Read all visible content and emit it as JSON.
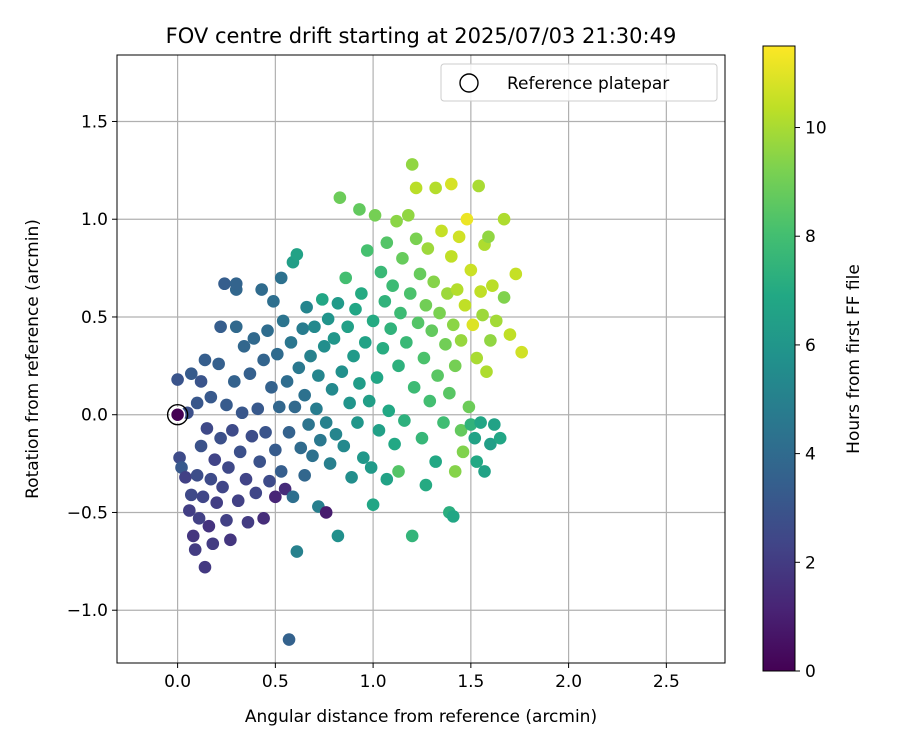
{
  "chart_data": {
    "type": "scatter",
    "title": "FOV centre drift starting at 2025/07/03 21:30:49",
    "xlabel": "Angular distance from reference (arcmin)",
    "ylabel": "Rotation from reference (arcmin)",
    "xlim": [
      -0.31,
      2.8
    ],
    "ylim": [
      -1.27,
      1.84
    ],
    "xticks": [
      0.0,
      0.5,
      1.0,
      1.5,
      2.0,
      2.5
    ],
    "xtick_labels": [
      "0.0",
      "0.5",
      "1.0",
      "1.5",
      "2.0",
      "2.5"
    ],
    "yticks": [
      -1.0,
      -0.5,
      0.0,
      0.5,
      1.0,
      1.5
    ],
    "ytick_labels": [
      "−1.0",
      "−0.5",
      "0.0",
      "0.5",
      "1.0",
      "1.5"
    ],
    "grid": true,
    "legend": {
      "position": "upper right",
      "entries": [
        "Reference platepar"
      ]
    },
    "colorbar": {
      "label": "Hours from first FF file",
      "colormap": "viridis",
      "range": [
        0,
        11.5
      ],
      "ticks": [
        0,
        2,
        4,
        6,
        8,
        10
      ],
      "tick_labels": [
        "0",
        "2",
        "4",
        "6",
        "8",
        "10"
      ]
    },
    "reference_point": {
      "x": 0.0,
      "y": 0.0,
      "label": "Reference platepar"
    },
    "points": [
      [
        0.0,
        0.18,
        3.0
      ],
      [
        0.01,
        -0.22,
        2.6
      ],
      [
        0.02,
        -0.27,
        3.2
      ],
      [
        0.04,
        -0.32,
        2.2
      ],
      [
        0.05,
        0.01,
        2.8
      ],
      [
        0.06,
        -0.49,
        2.1
      ],
      [
        0.07,
        -0.41,
        2.5
      ],
      [
        0.07,
        0.21,
        3.3
      ],
      [
        0.08,
        -0.62,
        1.8
      ],
      [
        0.09,
        -0.69,
        2.0
      ],
      [
        0.1,
        -0.31,
        2.7
      ],
      [
        0.1,
        0.06,
        3.1
      ],
      [
        0.11,
        -0.53,
        2.2
      ],
      [
        0.12,
        -0.16,
        2.9
      ],
      [
        0.12,
        0.17,
        3.0
      ],
      [
        0.13,
        -0.42,
        2.4
      ],
      [
        0.14,
        0.28,
        3.4
      ],
      [
        0.14,
        -0.78,
        1.9
      ],
      [
        0.15,
        -0.07,
        2.5
      ],
      [
        0.16,
        -0.57,
        1.7
      ],
      [
        0.17,
        -0.33,
        2.6
      ],
      [
        0.17,
        0.09,
        3.2
      ],
      [
        0.18,
        -0.66,
        2.0
      ],
      [
        0.19,
        -0.23,
        2.3
      ],
      [
        0.2,
        -0.45,
        2.1
      ],
      [
        0.21,
        0.26,
        3.5
      ],
      [
        0.22,
        -0.12,
        2.8
      ],
      [
        0.22,
        0.45,
        3.4
      ],
      [
        0.23,
        -0.37,
        2.4
      ],
      [
        0.24,
        0.67,
        3.4
      ],
      [
        0.25,
        -0.54,
        2.2
      ],
      [
        0.25,
        0.05,
        3.3
      ],
      [
        0.26,
        -0.27,
        2.5
      ],
      [
        0.27,
        -0.64,
        1.8
      ],
      [
        0.28,
        -0.08,
        2.6
      ],
      [
        0.29,
        0.17,
        3.6
      ],
      [
        0.3,
        0.64,
        3.8
      ],
      [
        0.3,
        0.67,
        3.7
      ],
      [
        0.3,
        0.45,
        3.9
      ],
      [
        0.31,
        -0.44,
        2.2
      ],
      [
        0.32,
        -0.19,
        2.8
      ],
      [
        0.33,
        0.01,
        3.1
      ],
      [
        0.34,
        0.35,
        3.8
      ],
      [
        0.35,
        -0.33,
        2.3
      ],
      [
        0.36,
        -0.55,
        2.0
      ],
      [
        0.37,
        0.21,
        3.5
      ],
      [
        0.38,
        -0.11,
        2.7
      ],
      [
        0.39,
        0.39,
        3.9
      ],
      [
        0.4,
        -0.4,
        2.4
      ],
      [
        0.41,
        0.03,
        3.2
      ],
      [
        0.42,
        -0.24,
        2.9
      ],
      [
        0.43,
        0.64,
        4.0
      ],
      [
        0.44,
        0.28,
        3.7
      ],
      [
        0.44,
        -0.53,
        1.5
      ],
      [
        0.45,
        -0.09,
        3.0
      ],
      [
        0.46,
        0.43,
        4.1
      ],
      [
        0.47,
        -0.34,
        2.6
      ],
      [
        0.48,
        0.14,
        3.6
      ],
      [
        0.49,
        0.58,
        4.2
      ],
      [
        0.5,
        -0.18,
        3.3
      ],
      [
        0.5,
        -0.42,
        1.2
      ],
      [
        0.51,
        0.31,
        4.0
      ],
      [
        0.52,
        0.04,
        3.8
      ],
      [
        0.53,
        -0.29,
        3.4
      ],
      [
        0.53,
        0.7,
        4.3
      ],
      [
        0.54,
        0.48,
        4.4
      ],
      [
        0.55,
        -0.38,
        1.4
      ],
      [
        0.56,
        0.17,
        4.1
      ],
      [
        0.57,
        -0.09,
        3.6
      ],
      [
        0.57,
        -1.15,
        3.6
      ],
      [
        0.58,
        0.37,
        4.5
      ],
      [
        0.59,
        0.78,
        6.4
      ],
      [
        0.59,
        -0.42,
        4.2
      ],
      [
        0.6,
        0.04,
        3.9
      ],
      [
        0.61,
        0.82,
        6.6
      ],
      [
        0.61,
        -0.7,
        5.0
      ],
      [
        0.62,
        0.24,
        4.6
      ],
      [
        0.63,
        -0.17,
        4.0
      ],
      [
        0.64,
        0.44,
        4.8
      ],
      [
        0.65,
        0.1,
        4.3
      ],
      [
        0.65,
        -0.31,
        3.8
      ],
      [
        0.66,
        0.55,
        5.2
      ],
      [
        0.67,
        -0.05,
        4.4
      ],
      [
        0.68,
        0.3,
        5.0
      ],
      [
        0.69,
        -0.21,
        4.3
      ],
      [
        0.7,
        0.45,
        5.4
      ],
      [
        0.71,
        0.03,
        4.8
      ],
      [
        0.72,
        -0.47,
        4.9
      ],
      [
        0.72,
        0.2,
        5.2
      ],
      [
        0.73,
        -0.13,
        4.6
      ],
      [
        0.74,
        0.59,
        6.8
      ],
      [
        0.75,
        0.35,
        5.6
      ],
      [
        0.76,
        -0.5,
        0.9
      ],
      [
        0.76,
        -0.04,
        5.0
      ],
      [
        0.77,
        0.49,
        5.9
      ],
      [
        0.78,
        -0.25,
        4.9
      ],
      [
        0.79,
        0.13,
        5.4
      ],
      [
        0.8,
        0.39,
        6.0
      ],
      [
        0.81,
        -0.1,
        5.2
      ],
      [
        0.82,
        -0.62,
        5.7
      ],
      [
        0.82,
        0.57,
        6.2
      ],
      [
        0.83,
        1.11,
        8.9
      ],
      [
        0.84,
        0.22,
        5.7
      ],
      [
        0.85,
        -0.16,
        5.4
      ],
      [
        0.86,
        0.7,
        8.0
      ],
      [
        0.87,
        0.45,
        6.5
      ],
      [
        0.88,
        0.06,
        5.9
      ],
      [
        0.89,
        -0.32,
        5.6
      ],
      [
        0.9,
        0.3,
        6.2
      ],
      [
        0.91,
        0.54,
        6.8
      ],
      [
        0.92,
        -0.04,
        6.0
      ],
      [
        0.93,
        0.16,
        6.3
      ],
      [
        0.93,
        1.05,
        8.7
      ],
      [
        0.94,
        0.62,
        7.0
      ],
      [
        0.95,
        -0.22,
        6.1
      ],
      [
        0.96,
        0.37,
        6.6
      ],
      [
        0.97,
        0.84,
        8.1
      ],
      [
        0.98,
        0.07,
        6.4
      ],
      [
        0.99,
        -0.27,
        6.2
      ],
      [
        1.0,
        -0.46,
        6.8
      ],
      [
        1.0,
        0.48,
        7.0
      ],
      [
        1.01,
        1.02,
        9.1
      ],
      [
        1.02,
        0.19,
        6.8
      ],
      [
        1.03,
        -0.08,
        6.5
      ],
      [
        1.04,
        0.73,
        7.7
      ],
      [
        1.05,
        0.34,
        7.1
      ],
      [
        1.06,
        0.58,
        7.4
      ],
      [
        1.07,
        0.88,
        8.4
      ],
      [
        1.07,
        -0.33,
        6.6
      ],
      [
        1.08,
        0.02,
        6.9
      ],
      [
        1.09,
        0.44,
        7.4
      ],
      [
        1.1,
        0.66,
        7.8
      ],
      [
        1.11,
        -0.15,
        6.9
      ],
      [
        1.12,
        0.99,
        9.5
      ],
      [
        1.13,
        0.25,
        7.3
      ],
      [
        1.13,
        -0.29,
        8.4
      ],
      [
        1.14,
        0.52,
        7.8
      ],
      [
        1.15,
        0.8,
        8.8
      ],
      [
        1.16,
        -0.03,
        7.3
      ],
      [
        1.17,
        0.37,
        7.7
      ],
      [
        1.18,
        1.02,
        9.6
      ],
      [
        1.19,
        0.62,
        8.2
      ],
      [
        1.2,
        1.28,
        9.6
      ],
      [
        1.2,
        -0.62,
        7.5
      ],
      [
        1.21,
        0.14,
        7.8
      ],
      [
        1.22,
        0.9,
        9.2
      ],
      [
        1.22,
        1.16,
        10.3
      ],
      [
        1.23,
        0.47,
        8.4
      ],
      [
        1.24,
        0.72,
        8.8
      ],
      [
        1.25,
        -0.12,
        7.6
      ],
      [
        1.26,
        0.29,
        8.2
      ],
      [
        1.27,
        0.56,
        9.0
      ],
      [
        1.27,
        -0.36,
        7.0
      ],
      [
        1.28,
        0.85,
        9.8
      ],
      [
        1.29,
        0.07,
        8.0
      ],
      [
        1.3,
        0.43,
        8.7
      ],
      [
        1.31,
        0.68,
        9.4
      ],
      [
        1.32,
        -0.24,
        6.9
      ],
      [
        1.32,
        1.16,
        10.2
      ],
      [
        1.33,
        0.2,
        8.5
      ],
      [
        1.34,
        0.52,
        9.2
      ],
      [
        1.35,
        0.94,
        10.5
      ],
      [
        1.36,
        -0.04,
        7.9
      ],
      [
        1.37,
        0.36,
        9.0
      ],
      [
        1.38,
        0.62,
        9.8
      ],
      [
        1.39,
        -0.5,
        7.2
      ],
      [
        1.39,
        0.11,
        8.5
      ],
      [
        1.4,
        0.81,
        10.4
      ],
      [
        1.4,
        1.18,
        10.8
      ],
      [
        1.41,
        -0.52,
        6.8
      ],
      [
        1.41,
        0.46,
        9.5
      ],
      [
        1.42,
        -0.29,
        9.4
      ],
      [
        1.42,
        0.25,
        9.1
      ],
      [
        1.43,
        0.64,
        10.2
      ],
      [
        1.44,
        0.91,
        10.7
      ],
      [
        1.45,
        -0.08,
        8.7
      ],
      [
        1.45,
        0.38,
        9.7
      ],
      [
        1.46,
        -0.19,
        9.3
      ],
      [
        1.47,
        0.56,
        10.4
      ],
      [
        1.48,
        1.0,
        11.2
      ],
      [
        1.49,
        0.04,
        8.9
      ],
      [
        1.5,
        -0.05,
        7.4
      ],
      [
        1.5,
        0.74,
        10.6
      ],
      [
        1.51,
        0.46,
        10.9
      ],
      [
        1.52,
        -0.12,
        6.6
      ],
      [
        1.53,
        0.29,
        10.0
      ],
      [
        1.53,
        -0.24,
        6.9
      ],
      [
        1.54,
        1.17,
        10.0
      ],
      [
        1.55,
        0.63,
        10.4
      ],
      [
        1.55,
        -0.04,
        6.8
      ],
      [
        1.56,
        0.51,
        9.8
      ],
      [
        1.57,
        0.87,
        10.1
      ],
      [
        1.57,
        -0.29,
        6.6
      ],
      [
        1.58,
        0.22,
        10.1
      ],
      [
        1.59,
        0.91,
        9.6
      ],
      [
        1.6,
        0.38,
        9.6
      ],
      [
        1.6,
        -0.15,
        6.4
      ],
      [
        1.61,
        0.66,
        10.3
      ],
      [
        1.62,
        -0.05,
        6.6
      ],
      [
        1.63,
        0.48,
        9.9
      ],
      [
        1.65,
        -0.12,
        6.8
      ],
      [
        1.67,
        1.0,
        10.1
      ],
      [
        1.67,
        0.6,
        9.3
      ],
      [
        1.7,
        0.41,
        10.4
      ],
      [
        1.73,
        0.72,
        10.5
      ],
      [
        1.76,
        0.32,
        10.7
      ]
    ]
  }
}
